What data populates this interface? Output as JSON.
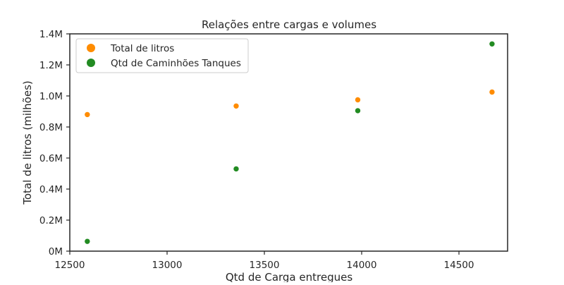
{
  "chart_data": {
    "type": "scatter",
    "title": "Relações entre cargas e volumes",
    "xlabel": "Qtd de Carga entregues",
    "ylabel": "Total de litros (milhões)",
    "xlim": [
      12500,
      14750
    ],
    "ylim": [
      0,
      1400000
    ],
    "x_ticks": [
      12500,
      13000,
      13500,
      14000,
      14500
    ],
    "x_tick_labels": [
      "12500",
      "13000",
      "13500",
      "14000",
      "14500"
    ],
    "y_ticks": [
      0,
      200000,
      400000,
      600000,
      800000,
      1000000,
      1200000,
      1400000
    ],
    "y_tick_labels": [
      "0M",
      "0.2M",
      "0.4M",
      "0.6M",
      "0.8M",
      "1.0M",
      "1.2M",
      "1.4M"
    ],
    "grid": false,
    "legend_position": "top-left",
    "series": [
      {
        "name": "Total de litros",
        "color": "#ff8c00",
        "points": [
          {
            "x": 12590,
            "y": 880000
          },
          {
            "x": 13355,
            "y": 935000
          },
          {
            "x": 13980,
            "y": 975000
          },
          {
            "x": 14670,
            "y": 1025000
          }
        ]
      },
      {
        "name": "Qtd de Caminhões Tanques",
        "color": "#228b22",
        "points": [
          {
            "x": 12590,
            "y": 63000
          },
          {
            "x": 13355,
            "y": 530000
          },
          {
            "x": 13980,
            "y": 905000
          },
          {
            "x": 14670,
            "y": 1335000
          }
        ]
      }
    ]
  }
}
